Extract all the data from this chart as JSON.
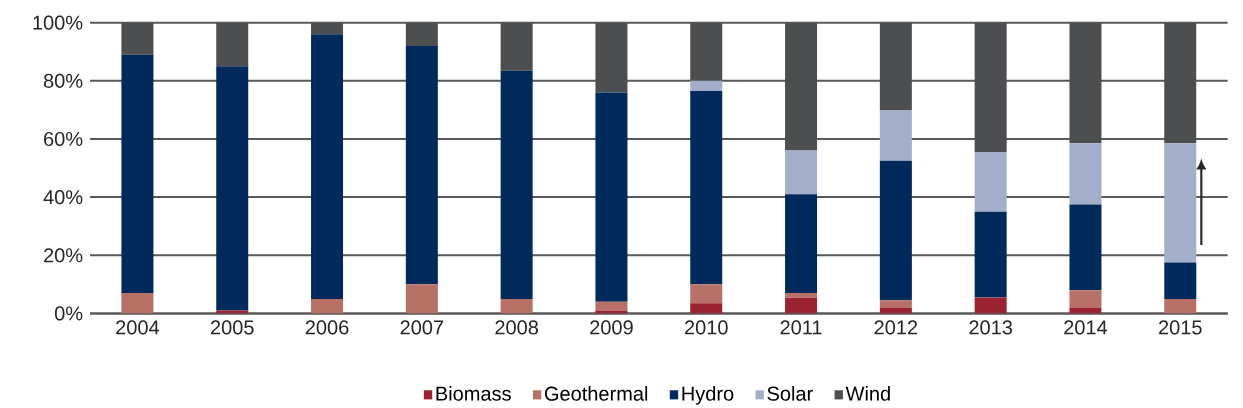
{
  "chart_data": {
    "type": "bar",
    "stacked": true,
    "categories": [
      "2004",
      "2005",
      "2006",
      "2007",
      "2008",
      "2009",
      "2010",
      "2011",
      "2012",
      "2013",
      "2014",
      "2015"
    ],
    "series": [
      {
        "name": "Biomass",
        "color": "#9b2230",
        "values": [
          0,
          1,
          0,
          0,
          0,
          1,
          3.5,
          5.5,
          2,
          5.5,
          2,
          0
        ]
      },
      {
        "name": "Geothermal",
        "color": "#b87166",
        "values": [
          7,
          0,
          5,
          10,
          5,
          3,
          6.5,
          1.5,
          2.5,
          0,
          6,
          5
        ]
      },
      {
        "name": "Hydro",
        "color": "#002a5c",
        "values": [
          82,
          84,
          91,
          82,
          78.5,
          72,
          66.5,
          34,
          48,
          29.5,
          29.5,
          12.5
        ]
      },
      {
        "name": "Solar",
        "color": "#a3aecb",
        "values": [
          0,
          0,
          0,
          0,
          0,
          0,
          3.5,
          15,
          17.5,
          20.5,
          21,
          41
        ]
      },
      {
        "name": "Wind",
        "color": "#4d4e50",
        "values": [
          11,
          15,
          4,
          8,
          16.5,
          24,
          20,
          44,
          30,
          44.5,
          41.5,
          41.5
        ]
      }
    ],
    "ylim": [
      0,
      100
    ],
    "yticks": [
      {
        "value": 0,
        "label": "0%"
      },
      {
        "value": 20,
        "label": "20%"
      },
      {
        "value": 40,
        "label": "40%"
      },
      {
        "value": 60,
        "label": "60%"
      },
      {
        "value": 80,
        "label": "80%"
      },
      {
        "value": 100,
        "label": "100%"
      }
    ],
    "grid": "y",
    "legend": "bottom"
  }
}
